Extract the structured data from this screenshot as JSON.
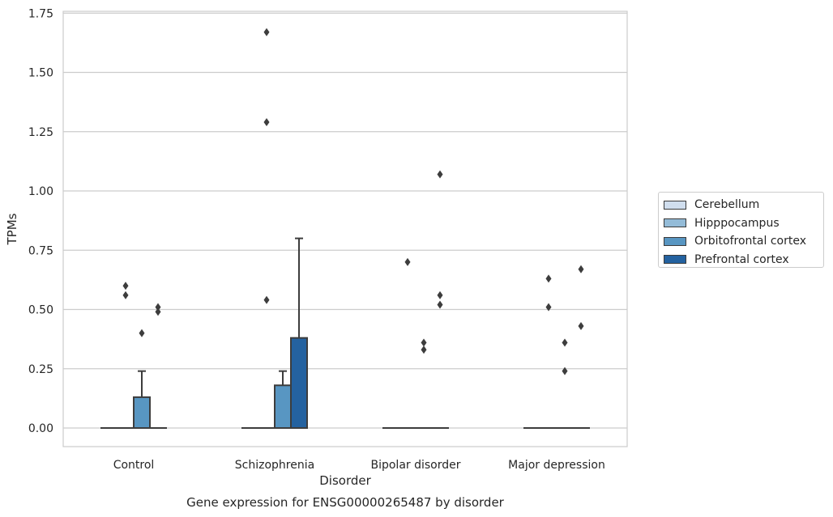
{
  "chart_data": {
    "type": "box",
    "title": "Gene expression for ENSG00000265487 by disorder",
    "xlabel": "Disorder",
    "ylabel": "TPMs",
    "ylim": [
      -0.08,
      1.76
    ],
    "yticks": [
      0.0,
      0.25,
      0.5,
      0.75,
      1.0,
      1.25,
      1.5,
      1.75
    ],
    "ytick_labels": [
      "0.00",
      "0.25",
      "0.50",
      "0.75",
      "1.00",
      "1.25",
      "1.50",
      "1.75"
    ],
    "categories": [
      "Control",
      "Schizophrenia",
      "Bipolar disorder",
      "Major depression"
    ],
    "grid": "horizontal",
    "legend_position": "right",
    "series": [
      {
        "name": "Cerebellum",
        "color": "#d0deee",
        "boxes": [
          {
            "q1": 0,
            "median": 0,
            "q3": 0,
            "whislo": 0,
            "whishi": 0,
            "fliers": []
          },
          {
            "q1": 0,
            "median": 0,
            "q3": 0,
            "whislo": 0,
            "whishi": 0,
            "fliers": []
          },
          {
            "q1": 0,
            "median": 0,
            "q3": 0,
            "whislo": 0,
            "whishi": 0,
            "fliers": []
          },
          {
            "q1": 0,
            "median": 0,
            "q3": 0,
            "whislo": 0,
            "whishi": 0,
            "fliers": []
          }
        ]
      },
      {
        "name": "Hipppocampus",
        "color": "#94bcd8",
        "boxes": [
          {
            "q1": 0,
            "median": 0,
            "q3": 0,
            "whislo": 0,
            "whishi": 0,
            "fliers": [
              0.6,
              0.56
            ]
          },
          {
            "q1": 0,
            "median": 0,
            "q3": 0,
            "whislo": 0,
            "whishi": 0,
            "fliers": [
              1.67,
              1.29,
              0.54
            ]
          },
          {
            "q1": 0,
            "median": 0,
            "q3": 0,
            "whislo": 0,
            "whishi": 0,
            "fliers": [
              0.7
            ]
          },
          {
            "q1": 0,
            "median": 0,
            "q3": 0,
            "whislo": 0,
            "whishi": 0,
            "fliers": [
              0.63,
              0.51
            ]
          }
        ]
      },
      {
        "name": "Orbitofrontal cortex",
        "color": "#5896c2",
        "boxes": [
          {
            "q1": 0,
            "median": 0,
            "q3": 0.13,
            "whislo": 0,
            "whishi": 0.24,
            "fliers": [
              0.4
            ]
          },
          {
            "q1": 0,
            "median": 0,
            "q3": 0.18,
            "whislo": 0,
            "whishi": 0.24,
            "fliers": []
          },
          {
            "q1": 0,
            "median": 0,
            "q3": 0,
            "whislo": 0,
            "whishi": 0,
            "fliers": [
              0.36,
              0.33
            ]
          },
          {
            "q1": 0,
            "median": 0,
            "q3": 0,
            "whislo": 0,
            "whishi": 0,
            "fliers": [
              0.36,
              0.24
            ]
          }
        ]
      },
      {
        "name": "Prefrontal cortex",
        "color": "#2462a0",
        "boxes": [
          {
            "q1": 0,
            "median": 0,
            "q3": 0,
            "whislo": 0,
            "whishi": 0,
            "fliers": [
              0.51,
              0.49
            ]
          },
          {
            "q1": 0,
            "median": 0,
            "q3": 0.38,
            "whislo": 0,
            "whishi": 0.8,
            "fliers": []
          },
          {
            "q1": 0,
            "median": 0,
            "q3": 0,
            "whislo": 0,
            "whishi": 0,
            "fliers": [
              1.07,
              0.56,
              0.52
            ]
          },
          {
            "q1": 0,
            "median": 0,
            "q3": 0,
            "whislo": 0,
            "whishi": 0,
            "fliers": [
              0.67,
              0.43
            ]
          }
        ]
      }
    ]
  }
}
